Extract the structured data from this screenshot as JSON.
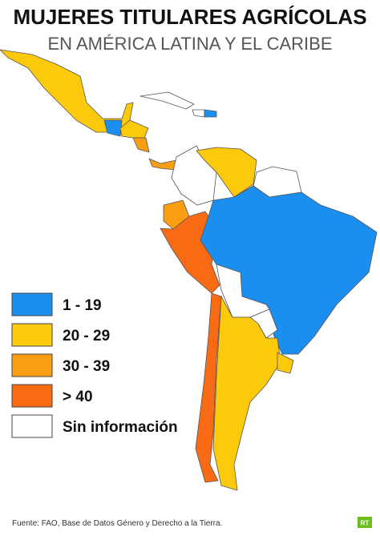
{
  "header": {
    "title": "MUJERES TITULARES AGRÍCOLAS",
    "subtitle": "EN AMÉRICA LATINA Y EL CARIBE"
  },
  "legend": {
    "items": [
      {
        "label": "1 - 19",
        "color": "#1a8ff0"
      },
      {
        "label": "20 - 29",
        "color": "#fdc90b"
      },
      {
        "label": "30 - 39",
        "color": "#f99d13"
      },
      {
        "label": "> 40",
        "color": "#f86a14"
      },
      {
        "label": "Sin información",
        "color": "#ffffff"
      }
    ]
  },
  "footer": {
    "source": "Fuente: FAO, Base de Datos Género y Derecho a la Tierra.",
    "logo": "RT"
  }
}
